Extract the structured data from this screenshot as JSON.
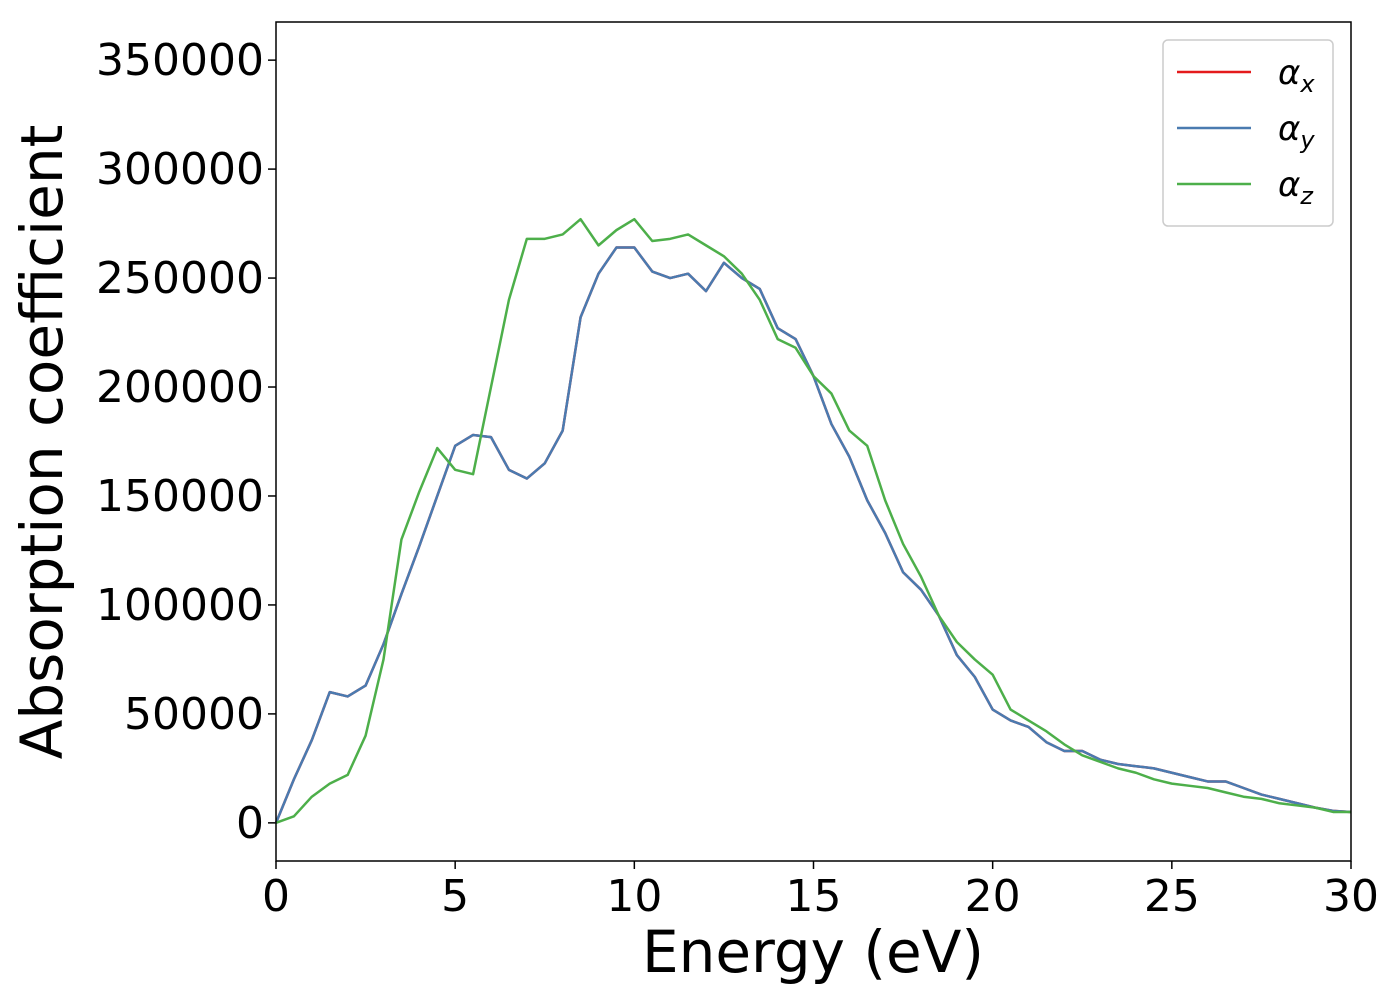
{
  "chart_data": {
    "type": "line",
    "xlabel": "Energy (eV)",
    "ylabel": "Absorption coefficient",
    "x": [
      0,
      0.5,
      1,
      1.5,
      2,
      2.5,
      3,
      3.5,
      4,
      4.5,
      5,
      5.5,
      6,
      6.5,
      7,
      7.5,
      8,
      8.5,
      9,
      9.5,
      10,
      10.5,
      11,
      11.5,
      12,
      12.5,
      13,
      13.5,
      14,
      14.5,
      15,
      15.5,
      16,
      16.5,
      17,
      17.5,
      18,
      18.5,
      19,
      19.5,
      20,
      20.5,
      21,
      21.5,
      22,
      22.5,
      23,
      23.5,
      24,
      24.5,
      25,
      25.5,
      26,
      26.5,
      27,
      27.5,
      28,
      28.5,
      29,
      29.5,
      30
    ],
    "series": [
      {
        "name": "α_x",
        "color": "#e41a1c",
        "values": [
          0,
          20000,
          38000,
          60000,
          58000,
          63000,
          82000,
          105000,
          127000,
          150000,
          173000,
          178000,
          177000,
          162000,
          158000,
          165000,
          180000,
          232000,
          252000,
          264000,
          264000,
          253000,
          250000,
          252000,
          244000,
          257000,
          250000,
          245000,
          227000,
          222000,
          205000,
          183000,
          168000,
          148000,
          133000,
          115000,
          107000,
          95000,
          77000,
          67000,
          52000,
          47000,
          44000,
          37000,
          33000,
          33000,
          29000,
          27000,
          26000,
          25000,
          23000,
          21000,
          19000,
          19000,
          16000,
          13000,
          11000,
          9000,
          7000,
          5500,
          5000
        ]
      },
      {
        "name": "α_y",
        "color": "#4a7bb0",
        "values": [
          0,
          20000,
          38000,
          60000,
          58000,
          63000,
          82000,
          105000,
          127000,
          150000,
          173000,
          178000,
          177000,
          162000,
          158000,
          165000,
          180000,
          232000,
          252000,
          264000,
          264000,
          253000,
          250000,
          252000,
          244000,
          257000,
          250000,
          245000,
          227000,
          222000,
          205000,
          183000,
          168000,
          148000,
          133000,
          115000,
          107000,
          95000,
          77000,
          67000,
          52000,
          47000,
          44000,
          37000,
          33000,
          33000,
          29000,
          27000,
          26000,
          25000,
          23000,
          21000,
          19000,
          19000,
          16000,
          13000,
          11000,
          9000,
          7000,
          5500,
          5000
        ]
      },
      {
        "name": "α_z",
        "color": "#4daf4a",
        "values": [
          0,
          3000,
          12000,
          18000,
          22000,
          40000,
          75000,
          130000,
          152000,
          172000,
          162000,
          160000,
          200000,
          240000,
          268000,
          268000,
          270000,
          277000,
          265000,
          272000,
          277000,
          267000,
          268000,
          270000,
          265000,
          260000,
          252000,
          240000,
          222000,
          218000,
          205000,
          197000,
          180000,
          173000,
          148000,
          128000,
          113000,
          95000,
          83000,
          75000,
          68000,
          52000,
          47000,
          42000,
          36000,
          31000,
          28000,
          25000,
          23000,
          20000,
          18000,
          17000,
          16000,
          14000,
          12000,
          11000,
          9000,
          8000,
          7000,
          5000,
          5000
        ]
      }
    ],
    "xlim": [
      0,
      30
    ],
    "xticks": [
      0,
      5,
      10,
      15,
      20,
      25,
      30
    ],
    "ylim": [
      -17500,
      367500
    ],
    "yticks": [
      0,
      50000,
      100000,
      150000,
      200000,
      250000,
      300000,
      350000
    ],
    "legend": "upper right"
  }
}
